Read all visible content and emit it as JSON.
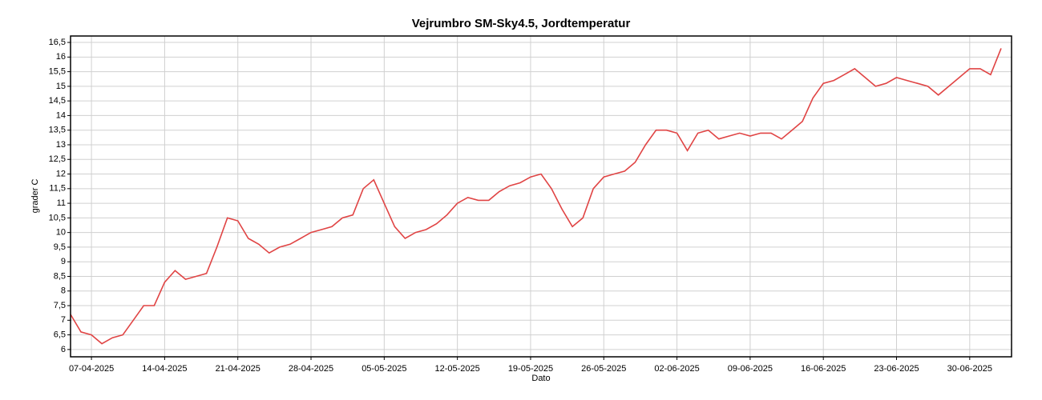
{
  "chart_data": {
    "type": "line",
    "title": "Vejrumbro SM-Sky4.5, Jordtemperatur",
    "xlabel": "Dato",
    "ylabel": "grader C",
    "x": [
      "05-04-2025",
      "06-04-2025",
      "07-04-2025",
      "08-04-2025",
      "09-04-2025",
      "10-04-2025",
      "11-04-2025",
      "12-04-2025",
      "13-04-2025",
      "14-04-2025",
      "15-04-2025",
      "16-04-2025",
      "17-04-2025",
      "18-04-2025",
      "19-04-2025",
      "20-04-2025",
      "21-04-2025",
      "22-04-2025",
      "23-04-2025",
      "24-04-2025",
      "25-04-2025",
      "26-04-2025",
      "27-04-2025",
      "28-04-2025",
      "29-04-2025",
      "30-04-2025",
      "01-05-2025",
      "02-05-2025",
      "03-05-2025",
      "04-05-2025",
      "05-05-2025",
      "06-05-2025",
      "07-05-2025",
      "08-05-2025",
      "09-05-2025",
      "10-05-2025",
      "11-05-2025",
      "12-05-2025",
      "13-05-2025",
      "14-05-2025",
      "15-05-2025",
      "16-05-2025",
      "17-05-2025",
      "18-05-2025",
      "19-05-2025",
      "20-05-2025",
      "21-05-2025",
      "22-05-2025",
      "23-05-2025",
      "24-05-2025",
      "25-05-2025",
      "26-05-2025",
      "27-05-2025",
      "28-05-2025",
      "29-05-2025",
      "30-05-2025",
      "31-05-2025",
      "01-06-2025",
      "02-06-2025",
      "03-06-2025",
      "04-06-2025",
      "05-06-2025",
      "06-06-2025",
      "07-06-2025",
      "08-06-2025",
      "09-06-2025",
      "10-06-2025",
      "11-06-2025",
      "12-06-2025",
      "13-06-2025",
      "14-06-2025",
      "15-06-2025",
      "16-06-2025",
      "17-06-2025",
      "18-06-2025",
      "19-06-2025",
      "20-06-2025",
      "21-06-2025",
      "22-06-2025",
      "23-06-2025",
      "24-06-2025",
      "25-06-2025",
      "26-06-2025",
      "27-06-2025",
      "28-06-2025",
      "29-06-2025",
      "30-06-2025",
      "01-07-2025",
      "02-07-2025",
      "03-07-2025"
    ],
    "series": [
      {
        "name": "Jordtemperatur",
        "color": "#e04444",
        "values": [
          7.2,
          6.6,
          6.5,
          6.2,
          6.4,
          6.5,
          7.0,
          7.5,
          7.5,
          8.3,
          8.7,
          8.4,
          8.5,
          8.6,
          9.5,
          10.5,
          10.4,
          9.8,
          9.6,
          9.3,
          9.5,
          9.6,
          9.8,
          10.0,
          10.1,
          10.2,
          10.5,
          10.6,
          11.5,
          11.8,
          11.0,
          10.2,
          9.8,
          10.0,
          10.1,
          10.3,
          10.6,
          11.0,
          11.2,
          11.1,
          11.1,
          11.4,
          11.6,
          11.7,
          11.9,
          12.0,
          11.5,
          10.8,
          10.2,
          10.5,
          11.5,
          11.9,
          12.0,
          12.1,
          12.4,
          13.0,
          13.5,
          13.5,
          13.4,
          12.8,
          13.4,
          13.5,
          13.2,
          13.3,
          13.4,
          13.3,
          13.4,
          13.4,
          13.2,
          13.5,
          13.8,
          14.6,
          15.1,
          15.2,
          15.4,
          15.6,
          15.3,
          15.0,
          15.1,
          15.3,
          15.2,
          15.1,
          15.0,
          14.7,
          15.0,
          15.3,
          15.6,
          15.6,
          15.4,
          16.3
        ]
      }
    ],
    "xlim": [
      "05-04-2025",
      "04-07-2025"
    ],
    "xticks": [
      "07-04-2025",
      "14-04-2025",
      "21-04-2025",
      "28-04-2025",
      "05-05-2025",
      "12-05-2025",
      "19-05-2025",
      "26-05-2025",
      "02-06-2025",
      "09-06-2025",
      "16-06-2025",
      "23-06-2025",
      "30-06-2025"
    ],
    "ylim": [
      5.75,
      16.72
    ],
    "yticks": [
      6,
      {
        "value": 6.5,
        "label": "6,5"
      },
      7,
      {
        "value": 7.5,
        "label": "7,5"
      },
      8,
      {
        "value": 8.5,
        "label": "8,5"
      },
      9,
      {
        "value": 9.5,
        "label": "9,5"
      },
      10,
      {
        "value": 10.5,
        "label": "10,5"
      },
      11,
      {
        "value": 11.5,
        "label": "11,5"
      },
      12,
      {
        "value": 12.5,
        "label": "12,5"
      },
      13,
      {
        "value": 13.5,
        "label": "13,5"
      },
      14,
      {
        "value": 14.5,
        "label": "14,5"
      },
      15,
      {
        "value": 15.5,
        "label": "15,5"
      },
      16,
      {
        "value": 16.5,
        "label": "16,5"
      }
    ],
    "grid": true
  }
}
